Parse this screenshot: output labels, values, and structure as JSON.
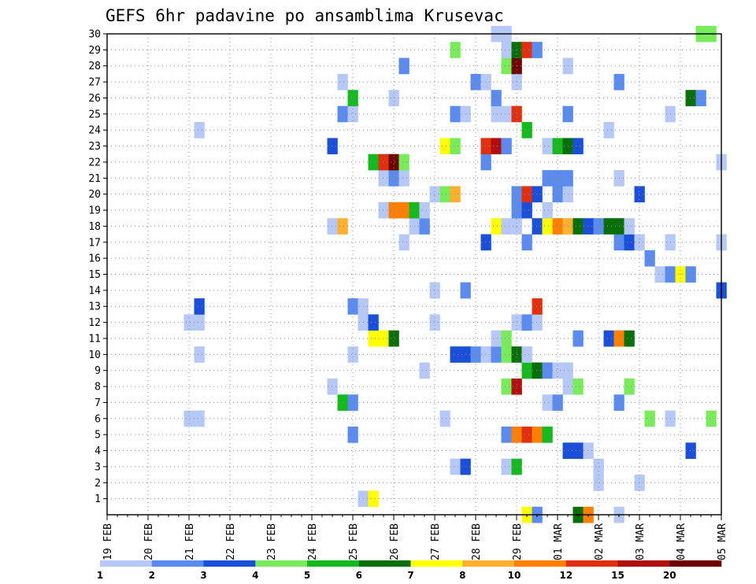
{
  "chart_data": {
    "type": "heatmap",
    "title": "GEFS 6hr padavine po ansamblima Krusevac",
    "x_tick_labels": [
      "19 FEB",
      "20 FEB",
      "21 FEB",
      "22 FEB",
      "23 FEB",
      "24 FEB",
      "25 FEB",
      "26 FEB",
      "27 FEB",
      "28 FEB",
      "29 FEB",
      "01 MAR",
      "02 MAR",
      "03 MAR",
      "04 MAR",
      "05 MAR"
    ],
    "x_range_steps": [
      0,
      60
    ],
    "y_tick_labels": [
      "1",
      "2",
      "3",
      "4",
      "5",
      "6",
      "7",
      "8",
      "9",
      "10",
      "11",
      "12",
      "13",
      "14",
      "15",
      "16",
      "17",
      "18",
      "19",
      "20",
      "21",
      "22",
      "23",
      "24",
      "25",
      "26",
      "27",
      "28",
      "29",
      "30"
    ],
    "y_range": [
      0,
      30
    ],
    "grid": true,
    "legend": {
      "placement": "bottom",
      "colors": [
        "#b6c8f5",
        "#5b8bee",
        "#1b4fd8",
        "#7aeb5c",
        "#16b820",
        "#0a6e0a",
        "#ffff00",
        "#ffb030",
        "#ff8000",
        "#e03010",
        "#b00e0e",
        "#700000"
      ],
      "labels": [
        "1",
        "2",
        "3",
        "4",
        "5",
        "6",
        "7",
        "8",
        "10",
        "12",
        "15",
        "20"
      ]
    },
    "cells": [
      [
        25,
        1,
        0
      ],
      [
        26,
        1,
        6
      ],
      [
        48,
        2,
        0
      ],
      [
        52,
        2,
        0
      ],
      [
        34,
        3,
        0
      ],
      [
        35,
        3,
        2
      ],
      [
        39,
        3,
        0
      ],
      [
        40,
        3,
        4
      ],
      [
        48,
        3,
        0
      ],
      [
        45,
        4,
        2
      ],
      [
        46,
        4,
        2
      ],
      [
        47,
        4,
        0
      ],
      [
        57,
        4,
        2
      ],
      [
        24,
        5,
        1
      ],
      [
        39,
        5,
        1
      ],
      [
        40,
        5,
        8
      ],
      [
        41,
        5,
        9
      ],
      [
        42,
        5,
        8
      ],
      [
        43,
        5,
        4
      ],
      [
        8,
        6,
        0
      ],
      [
        9,
        6,
        0
      ],
      [
        33,
        6,
        0
      ],
      [
        53,
        6,
        3
      ],
      [
        55,
        6,
        0
      ],
      [
        59,
        6,
        3
      ],
      [
        23,
        7,
        4
      ],
      [
        24,
        7,
        1
      ],
      [
        43,
        7,
        0
      ],
      [
        44,
        7,
        1
      ],
      [
        50,
        7,
        1
      ],
      [
        22,
        8,
        0
      ],
      [
        39,
        8,
        3
      ],
      [
        40,
        8,
        10
      ],
      [
        45,
        8,
        0
      ],
      [
        46,
        8,
        3
      ],
      [
        51,
        8,
        3
      ],
      [
        31,
        9,
        0
      ],
      [
        41,
        9,
        4
      ],
      [
        42,
        9,
        5
      ],
      [
        43,
        9,
        1
      ],
      [
        44,
        9,
        0
      ],
      [
        45,
        9,
        0
      ],
      [
        9,
        10,
        0
      ],
      [
        24,
        10,
        0
      ],
      [
        34,
        10,
        2
      ],
      [
        35,
        10,
        2
      ],
      [
        36,
        10,
        1
      ],
      [
        37,
        10,
        0
      ],
      [
        38,
        10,
        1
      ],
      [
        39,
        10,
        3
      ],
      [
        40,
        10,
        5
      ],
      [
        41,
        10,
        0
      ],
      [
        26,
        11,
        6
      ],
      [
        27,
        11,
        6
      ],
      [
        28,
        11,
        5
      ],
      [
        38,
        11,
        0
      ],
      [
        39,
        11,
        3
      ],
      [
        46,
        11,
        1
      ],
      [
        49,
        11,
        2
      ],
      [
        50,
        11,
        8
      ],
      [
        51,
        11,
        5
      ],
      [
        8,
        12,
        0
      ],
      [
        9,
        12,
        0
      ],
      [
        25,
        12,
        0
      ],
      [
        26,
        12,
        2
      ],
      [
        32,
        12,
        0
      ],
      [
        40,
        12,
        0
      ],
      [
        41,
        12,
        1
      ],
      [
        42,
        12,
        0
      ],
      [
        9,
        13,
        2
      ],
      [
        24,
        13,
        1
      ],
      [
        25,
        13,
        0
      ],
      [
        42,
        13,
        9
      ],
      [
        32,
        14,
        0
      ],
      [
        35,
        14,
        1
      ],
      [
        60,
        14,
        2
      ],
      [
        54,
        15,
        0
      ],
      [
        55,
        15,
        1
      ],
      [
        56,
        15,
        6
      ],
      [
        57,
        15,
        1
      ],
      [
        53,
        16,
        1
      ],
      [
        29,
        17,
        0
      ],
      [
        37,
        17,
        2
      ],
      [
        41,
        17,
        1
      ],
      [
        50,
        17,
        1
      ],
      [
        51,
        17,
        2
      ],
      [
        52,
        17,
        0
      ],
      [
        55,
        17,
        0
      ],
      [
        60,
        17,
        0
      ],
      [
        22,
        18,
        0
      ],
      [
        23,
        18,
        7
      ],
      [
        30,
        18,
        0
      ],
      [
        31,
        18,
        1
      ],
      [
        38,
        18,
        6
      ],
      [
        39,
        18,
        0
      ],
      [
        40,
        18,
        0
      ],
      [
        42,
        18,
        2
      ],
      [
        43,
        18,
        6
      ],
      [
        44,
        18,
        8
      ],
      [
        45,
        18,
        7
      ],
      [
        46,
        18,
        5
      ],
      [
        47,
        18,
        2
      ],
      [
        48,
        18,
        1
      ],
      [
        49,
        18,
        5
      ],
      [
        50,
        18,
        5
      ],
      [
        51,
        18,
        0
      ],
      [
        27,
        19,
        0
      ],
      [
        28,
        19,
        8
      ],
      [
        29,
        19,
        8
      ],
      [
        30,
        19,
        4
      ],
      [
        31,
        19,
        0
      ],
      [
        40,
        19,
        1
      ],
      [
        41,
        19,
        2
      ],
      [
        43,
        19,
        0
      ],
      [
        32,
        20,
        0
      ],
      [
        33,
        20,
        3
      ],
      [
        34,
        20,
        7
      ],
      [
        40,
        20,
        1
      ],
      [
        41,
        20,
        9
      ],
      [
        42,
        20,
        2
      ],
      [
        44,
        20,
        1
      ],
      [
        45,
        20,
        0
      ],
      [
        52,
        20,
        2
      ],
      [
        27,
        21,
        0
      ],
      [
        28,
        21,
        1
      ],
      [
        29,
        21,
        0
      ],
      [
        43,
        21,
        1
      ],
      [
        44,
        21,
        1
      ],
      [
        45,
        21,
        1
      ],
      [
        50,
        21,
        0
      ],
      [
        26,
        22,
        4
      ],
      [
        27,
        22,
        9
      ],
      [
        28,
        22,
        11
      ],
      [
        29,
        22,
        3
      ],
      [
        37,
        22,
        1
      ],
      [
        60,
        22,
        0
      ],
      [
        22,
        23,
        2
      ],
      [
        33,
        23,
        6
      ],
      [
        34,
        23,
        3
      ],
      [
        37,
        23,
        9
      ],
      [
        38,
        23,
        10
      ],
      [
        39,
        23,
        1
      ],
      [
        43,
        23,
        0
      ],
      [
        44,
        23,
        4
      ],
      [
        45,
        23,
        5
      ],
      [
        46,
        23,
        2
      ],
      [
        9,
        24,
        0
      ],
      [
        41,
        24,
        4
      ],
      [
        49,
        24,
        0
      ],
      [
        23,
        25,
        1
      ],
      [
        24,
        25,
        0
      ],
      [
        34,
        25,
        1
      ],
      [
        35,
        25,
        0
      ],
      [
        38,
        25,
        0
      ],
      [
        39,
        25,
        0
      ],
      [
        40,
        25,
        9
      ],
      [
        45,
        25,
        1
      ],
      [
        55,
        25,
        0
      ],
      [
        24,
        26,
        4
      ],
      [
        28,
        26,
        0
      ],
      [
        38,
        26,
        1
      ],
      [
        57,
        26,
        5
      ],
      [
        58,
        26,
        1
      ],
      [
        23,
        27,
        0
      ],
      [
        36,
        27,
        1
      ],
      [
        37,
        27,
        0
      ],
      [
        40,
        27,
        0
      ],
      [
        50,
        27,
        1
      ],
      [
        29,
        28,
        1
      ],
      [
        39,
        28,
        3
      ],
      [
        40,
        28,
        11
      ],
      [
        45,
        28,
        0
      ],
      [
        34,
        29,
        3
      ],
      [
        39,
        29,
        0
      ],
      [
        40,
        29,
        5
      ],
      [
        41,
        29,
        9
      ],
      [
        42,
        29,
        1
      ],
      [
        38,
        30,
        0
      ],
      [
        39,
        30,
        0
      ],
      [
        58,
        30,
        3
      ],
      [
        59,
        30,
        3
      ],
      [
        41,
        0,
        6
      ],
      [
        42,
        0,
        1
      ],
      [
        46,
        0,
        5
      ],
      [
        47,
        0,
        8
      ],
      [
        50,
        0,
        0
      ]
    ]
  }
}
